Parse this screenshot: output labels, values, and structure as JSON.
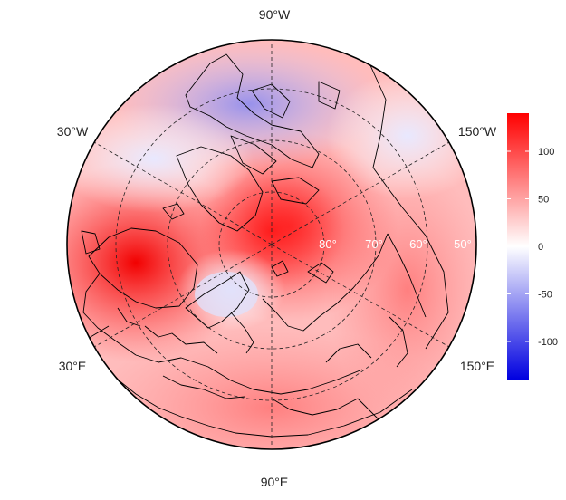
{
  "map": {
    "longitude_labels": {
      "top": "90°W",
      "upper_left": "30°W",
      "upper_right": "150°W",
      "lower_left": "30°E",
      "lower_right": "150°E",
      "bottom": "90°E"
    },
    "latitude_labels": [
      "80°",
      "70°",
      "60°",
      "50°"
    ],
    "projection": "north-polar stereographic",
    "graticule": "dashed"
  },
  "colorbar": {
    "min": -140,
    "max": 140,
    "ticks": [
      "100",
      "50",
      "0",
      "-50",
      "-100"
    ],
    "tick_values": [
      100,
      50,
      0,
      -50,
      -100
    ],
    "colors": {
      "low": "#0000e0",
      "mid": "#ffffff",
      "high": "#ff0000"
    }
  }
}
